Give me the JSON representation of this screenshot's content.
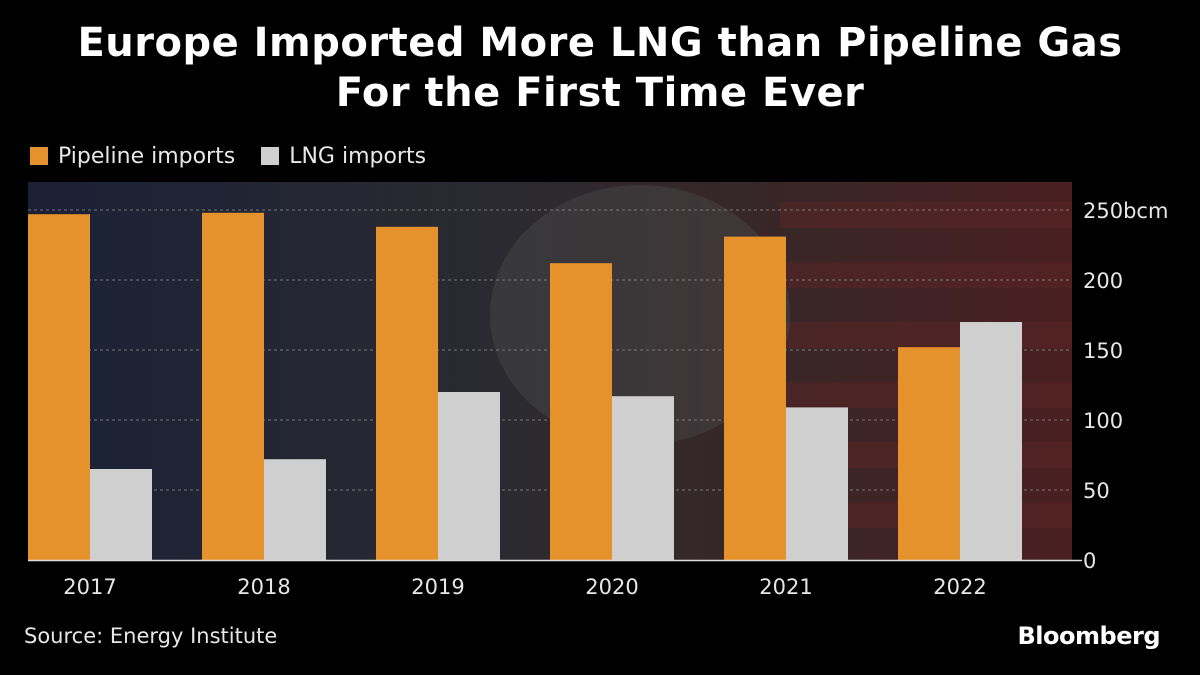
{
  "chart_data": {
    "type": "bar",
    "title": "Europe Imported More LNG than Pipeline Gas\nFor the First Time Ever",
    "title_lines": [
      "Europe Imported More LNG than Pipeline Gas",
      "For the First Time Ever"
    ],
    "categories": [
      "2017",
      "2018",
      "2019",
      "2020",
      "2021",
      "2022"
    ],
    "series": [
      {
        "name": "Pipeline imports",
        "color": "#e6922c",
        "values": [
          247,
          248,
          238,
          212,
          231,
          152
        ]
      },
      {
        "name": "LNG imports",
        "color": "#cfcfcf",
        "values": [
          65,
          72,
          120,
          117,
          109,
          170
        ]
      }
    ],
    "y_ticks": [
      {
        "value": 0,
        "label": "0"
      },
      {
        "value": 50,
        "label": "50"
      },
      {
        "value": 100,
        "label": "100"
      },
      {
        "value": 150,
        "label": "150"
      },
      {
        "value": 200,
        "label": "200"
      },
      {
        "value": 250,
        "label": "250bcm"
      }
    ],
    "ylim": [
      0,
      270
    ],
    "xlabel": "",
    "ylabel": "",
    "grid": true,
    "legend_position": "top-left",
    "source": "Source: Energy Institute",
    "brand": "Bloomberg"
  }
}
